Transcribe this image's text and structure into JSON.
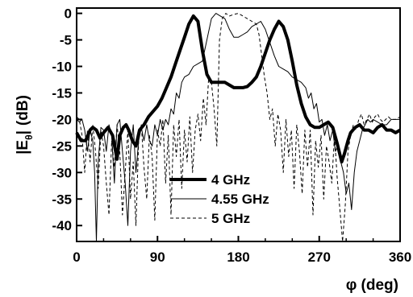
{
  "chart_data": {
    "type": "line",
    "title": "",
    "xlabel": "φ (deg)",
    "ylabel_main": "|E",
    "ylabel_sub": "θ",
    "ylabel_unit": "(dB)",
    "xlim": [
      0,
      360
    ],
    "ylim": [
      -43,
      1
    ],
    "xticks": [
      0,
      90,
      180,
      270,
      360
    ],
    "xtick_labels": [
      "0",
      "90",
      "180",
      "270",
      "360"
    ],
    "yticks": [
      0,
      -5,
      -10,
      -15,
      -20,
      -25,
      -30,
      -35,
      -40
    ],
    "ytick_labels": [
      "0",
      "-5",
      "-10",
      "-15",
      "-20",
      "-25",
      "-30",
      "-35",
      "-40"
    ],
    "grid": false,
    "legend_position": "lower-center",
    "series": [
      {
        "name": "4 GHz",
        "style": "thick-solid",
        "color": "#000000",
        "x": [
          0,
          5,
          10,
          15,
          18,
          22,
          26,
          30,
          35,
          40,
          45,
          48,
          52,
          55,
          58,
          62,
          66,
          70,
          75,
          80,
          85,
          90,
          95,
          100,
          105,
          110,
          115,
          120,
          125,
          130,
          135,
          140,
          145,
          150,
          155,
          160,
          165,
          170,
          175,
          180,
          185,
          190,
          195,
          200,
          205,
          210,
          215,
          220,
          225,
          230,
          235,
          240,
          245,
          250,
          255,
          260,
          265,
          270,
          275,
          280,
          285,
          290,
          295,
          298,
          302,
          305,
          310,
          315,
          320,
          325,
          330,
          335,
          340,
          345,
          350,
          355,
          360
        ],
        "values": [
          -22.5,
          -24,
          -24,
          -22,
          -21.5,
          -22,
          -23.5,
          -22.5,
          -21.5,
          -23,
          -27.5,
          -23,
          -21.5,
          -21,
          -22,
          -24,
          -25,
          -22,
          -21,
          -19.5,
          -18.5,
          -17.5,
          -16,
          -14,
          -12,
          -9.5,
          -7,
          -4.5,
          -2,
          -0.5,
          -1.5,
          -7,
          -11.5,
          -13,
          -13,
          -13,
          -13,
          -13.5,
          -14,
          -14,
          -14,
          -13.8,
          -13,
          -12,
          -10,
          -7.5,
          -5,
          -3,
          -1.5,
          -2.5,
          -5,
          -9,
          -13.5,
          -17,
          -19.5,
          -21,
          -21.5,
          -21.5,
          -21,
          -20.5,
          -21.5,
          -24.5,
          -28,
          -26.5,
          -24,
          -22.5,
          -21.5,
          -21,
          -22,
          -22,
          -22.5,
          -21.5,
          -21,
          -22,
          -22,
          -22.5,
          -22
        ]
      },
      {
        "name": "4.55 GHz",
        "style": "thin-solid",
        "color": "#000000",
        "x": [
          0,
          3,
          6,
          9,
          12,
          15,
          18,
          20,
          22,
          24,
          27,
          30,
          33,
          36,
          39,
          42,
          45,
          48,
          51,
          54,
          57,
          60,
          63,
          66,
          69,
          72,
          75,
          78,
          81,
          84,
          87,
          90,
          93,
          96,
          99,
          102,
          105,
          108,
          111,
          114,
          117,
          120,
          125,
          130,
          135,
          140,
          145,
          150,
          155,
          160,
          165,
          170,
          175,
          180,
          185,
          190,
          195,
          200,
          205,
          210,
          215,
          220,
          225,
          230,
          235,
          240,
          245,
          250,
          255,
          258,
          261,
          264,
          267,
          270,
          273,
          276,
          279,
          282,
          285,
          288,
          291,
          294,
          297,
          300,
          303,
          306,
          309,
          312,
          315,
          318,
          321,
          324,
          327,
          330,
          335,
          340,
          345,
          350,
          355,
          360
        ],
        "values": [
          -20,
          -20.5,
          -20,
          -22,
          -26,
          -22,
          -24,
          -30,
          -43,
          -28,
          -21.5,
          -22,
          -26,
          -21,
          -23,
          -32,
          -21,
          -20,
          -26,
          -32,
          -40,
          -26,
          -21,
          -30,
          -24,
          -21.5,
          -24,
          -21,
          -24,
          -25,
          -21,
          -23,
          -20,
          -22,
          -20,
          -21,
          -18,
          -19,
          -15,
          -16,
          -13,
          -12,
          -11.5,
          -10,
          -9.5,
          -9,
          -5,
          -1,
          0,
          -0.5,
          -1,
          -3,
          -4.5,
          -4.5,
          -4,
          -3.5,
          -2.5,
          -2,
          -1.5,
          -3,
          -5.5,
          -8,
          -10,
          -10.5,
          -11,
          -12,
          -12.5,
          -13,
          -14,
          -16,
          -15,
          -18,
          -17,
          -20.5,
          -20,
          -23,
          -21,
          -24,
          -22,
          -26,
          -25,
          -28,
          -30,
          -34,
          -32,
          -37,
          -30,
          -26,
          -24,
          -22,
          -21,
          -20,
          -20.5,
          -20,
          -20.5,
          -21,
          -21,
          -20,
          -20,
          -20
        ]
      },
      {
        "name": "5 GHz",
        "style": "dashed",
        "color": "#000000",
        "x": [
          0,
          3,
          6,
          9,
          12,
          15,
          18,
          21,
          24,
          27,
          30,
          33,
          36,
          39,
          42,
          45,
          48,
          51,
          54,
          57,
          60,
          63,
          66,
          69,
          72,
          75,
          78,
          81,
          84,
          87,
          90,
          93,
          96,
          99,
          102,
          105,
          108,
          111,
          114,
          117,
          120,
          123,
          126,
          129,
          132,
          135,
          138,
          141,
          144,
          147,
          150,
          153,
          156,
          159,
          162,
          166,
          170,
          175,
          180,
          185,
          190,
          195,
          200,
          203,
          206,
          209,
          212,
          215,
          218,
          221,
          224,
          227,
          230,
          233,
          236,
          239,
          242,
          245,
          248,
          251,
          254,
          257,
          260,
          263,
          266,
          269,
          272,
          275,
          278,
          281,
          284,
          287,
          290,
          293,
          296,
          299,
          302,
          305,
          308,
          311,
          314,
          317,
          320,
          323,
          326,
          329,
          332,
          335,
          338,
          341,
          344,
          347,
          350,
          355,
          360
        ],
        "values": [
          -19.5,
          -20,
          -23,
          -30,
          -22,
          -28,
          -21,
          -26,
          -33,
          -22,
          -25,
          -32,
          -38,
          -24,
          -29,
          -21,
          -26,
          -38,
          -30,
          -22,
          -35,
          -28,
          -40,
          -24,
          -21,
          -29,
          -35,
          -23,
          -27,
          -39,
          -22,
          -25,
          -20,
          -32,
          -23,
          -38,
          -21,
          -27,
          -20,
          -33,
          -22,
          -28,
          -19.5,
          -30,
          -22,
          -19,
          -24,
          -16,
          -21,
          -12,
          -13,
          -18,
          -25,
          -5,
          -1,
          0,
          -0.5,
          -0.2,
          0,
          -0.5,
          -1,
          -1.5,
          -2,
          -4,
          -8,
          -12,
          -15,
          -20,
          -18,
          -25,
          -19,
          -22,
          -30,
          -20,
          -27,
          -22,
          -33,
          -21,
          -26,
          -34,
          -22,
          -29,
          -22,
          -38,
          -24,
          -29,
          -23,
          -35,
          -25,
          -28,
          -32,
          -23,
          -31,
          -37,
          -43,
          -36,
          -26,
          -23,
          -21,
          -22,
          -20,
          -19,
          -21,
          -20,
          -19,
          -20.5,
          -19.5,
          -19,
          -20,
          -20.5,
          -20,
          -19.5,
          -20,
          -20,
          -19.5
        ]
      }
    ]
  }
}
